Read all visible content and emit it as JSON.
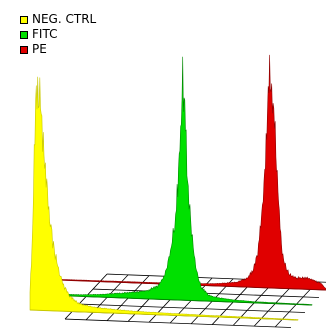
{
  "chart_data": {
    "type": "area",
    "title": "",
    "xlabel": "",
    "ylabel": "",
    "legend_position": "top-left",
    "grid": true,
    "x_range": [
      0,
      255
    ],
    "y_range": [
      0,
      100
    ],
    "series": [
      {
        "name": "NEG. CTRL",
        "color": "#ffff00",
        "stroke": "#c8c800",
        "x": [
          0,
          2,
          4,
          6,
          8,
          10,
          12,
          14,
          16,
          18,
          20,
          24,
          28,
          32,
          36,
          40,
          46,
          52,
          60,
          70,
          80,
          90,
          100,
          120,
          140,
          170,
          200,
          230,
          255
        ],
        "y": [
          8,
          30,
          72,
          95,
          100,
          92,
          80,
          66,
          54,
          44,
          36,
          26,
          18,
          12,
          8,
          6,
          4,
          3,
          2.4,
          2,
          1.7,
          1.4,
          1.2,
          1,
          0.8,
          0.6,
          0.5,
          0.3,
          0.2
        ]
      },
      {
        "name": "FITC",
        "color": "#00e000",
        "stroke": "#008800",
        "x": [
          0,
          40,
          60,
          80,
          90,
          100,
          108,
          114,
          118,
          122,
          126,
          128,
          130,
          132,
          134,
          136,
          138,
          142,
          146,
          150,
          156,
          162,
          170,
          180,
          200,
          255
        ],
        "y": [
          0.5,
          0.8,
          1.5,
          2.5,
          3,
          4,
          6,
          10,
          16,
          26,
          42,
          58,
          78,
          100,
          88,
          64,
          44,
          24,
          12,
          6,
          3,
          2,
          1.5,
          1,
          0.5,
          0.2
        ]
      },
      {
        "name": "PE",
        "color": "#e00000",
        "stroke": "#900000",
        "x": [
          0,
          120,
          150,
          170,
          180,
          186,
          190,
          193,
          196,
          198,
          200,
          202,
          204,
          206,
          208,
          210,
          212,
          214,
          218,
          222,
          226,
          232,
          238,
          244,
          250,
          255
        ],
        "y": [
          0.3,
          0.5,
          1,
          2,
          4,
          8,
          16,
          28,
          46,
          64,
          84,
          100,
          88,
          74,
          56,
          38,
          24,
          14,
          8,
          6,
          5,
          5,
          5,
          4,
          3,
          0.5
        ]
      }
    ]
  }
}
